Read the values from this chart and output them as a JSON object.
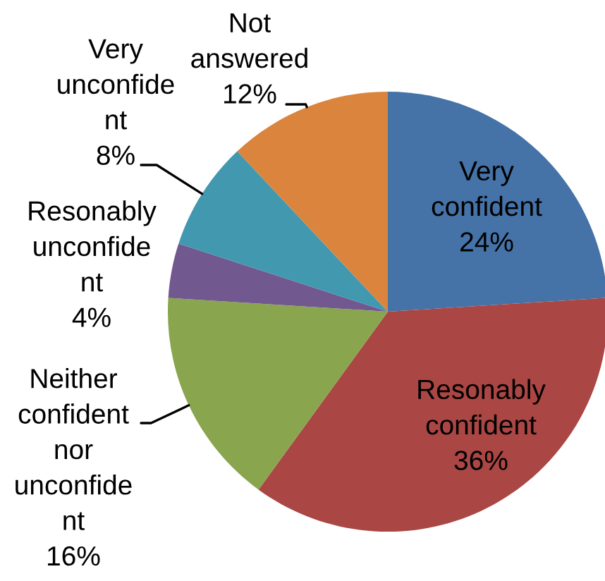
{
  "chart_data": {
    "type": "pie",
    "categories": [
      "Very\nconfident",
      "Resonably\nconfident",
      "Neither\nconfident\nnor\nunconfide\nnt",
      "Resonably\nunconfide\nnt",
      "Very\nunconfide\nnt",
      "Not\nanswered"
    ],
    "values": [
      24,
      36,
      16,
      4,
      8,
      12
    ],
    "value_labels": [
      "24%",
      "36%",
      "16%",
      "4%",
      "8%",
      "12%"
    ],
    "colors": [
      "#4572a7",
      "#aa4643",
      "#89a54e",
      "#71588f",
      "#4198af",
      "#db843d"
    ]
  }
}
